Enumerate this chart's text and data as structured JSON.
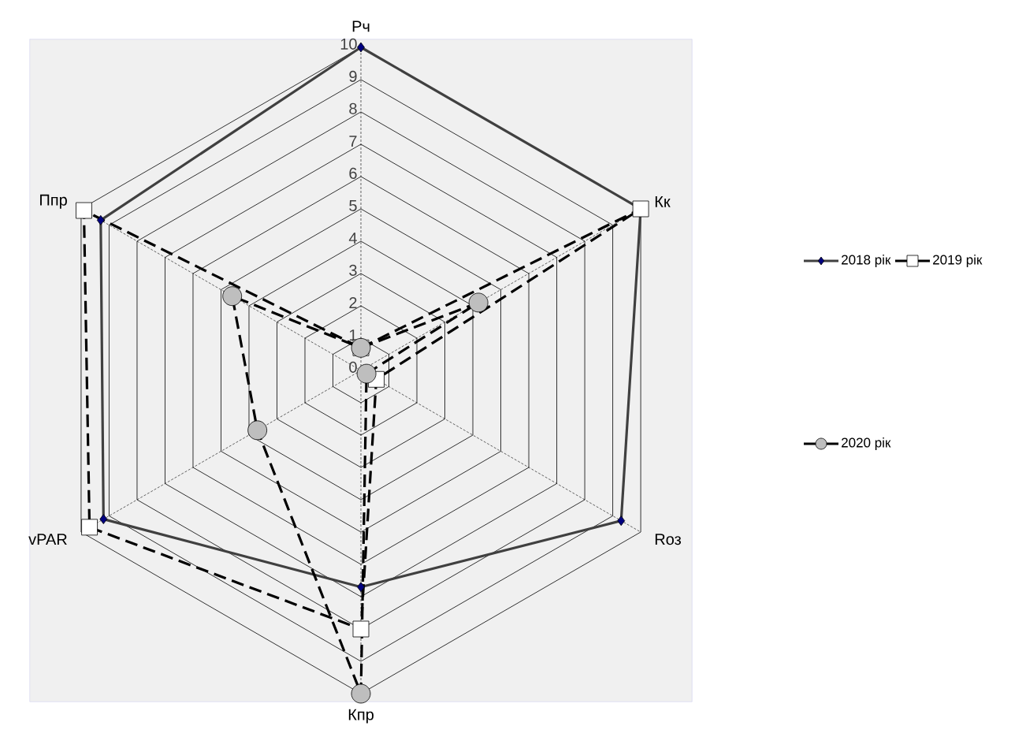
{
  "chart_data": {
    "type": "radar",
    "categories": [
      "Рч",
      "Кк",
      "Rоз",
      "Кпр",
      "vPAR",
      "Ппр"
    ],
    "series": [
      {
        "name": "2018 рік",
        "color": "#404040",
        "marker": "diamond",
        "line_style": "solid",
        "values": [
          10,
          10,
          9.3,
          6.7,
          9.2,
          9.3
        ]
      },
      {
        "name": "2019 рік",
        "color": "#000000",
        "marker": "square",
        "line_style": "dashed",
        "values": [
          0.7,
          10,
          0.55,
          8,
          9.7,
          9.9
        ]
      },
      {
        "name": "2020 рік",
        "color": "#000000",
        "marker": "circle",
        "line_style": "dashed",
        "values": [
          0.7,
          4.2,
          0.2,
          10,
          3.7,
          4.6
        ]
      }
    ],
    "ylim": [
      0,
      10
    ],
    "yticks": [
      0,
      1,
      2,
      3,
      4,
      5,
      6,
      7,
      8,
      9,
      10
    ],
    "grid": true,
    "legend": "right"
  }
}
